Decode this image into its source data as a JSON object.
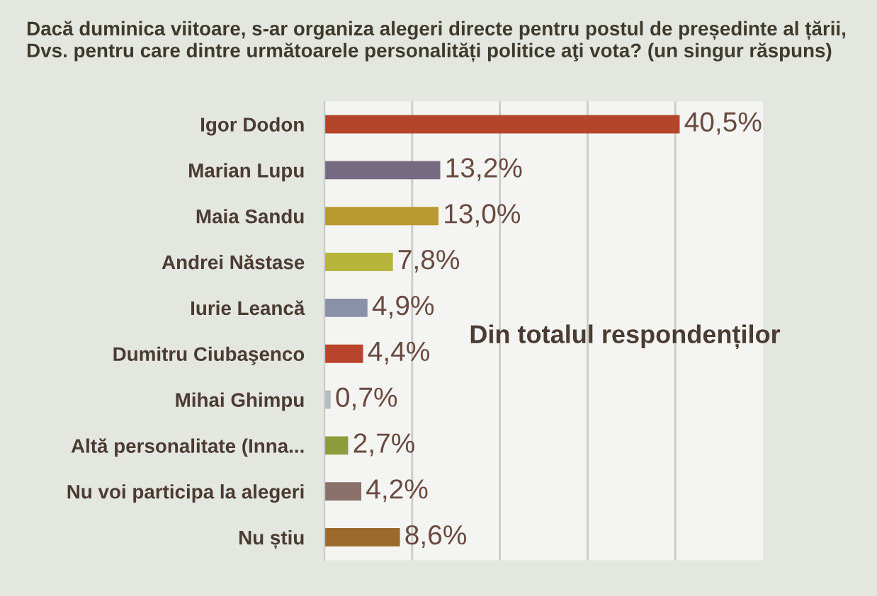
{
  "chart_data": {
    "type": "bar",
    "orientation": "horizontal",
    "title": "Dacă duminica viitoare, s-ar organiza alegeri directe pentru postul de președinte al țării, Dvs. pentru care dintre următoarele personalități politice aţi vota? (un singur răspuns)",
    "categories": [
      "Igor Dodon",
      "Marian Lupu",
      "Maia Sandu",
      "Andrei Năstase",
      "Iurie Leancă",
      "Dumitru Ciubaşenco",
      "Mihai Ghimpu",
      "Altă personalitate (Inna...",
      "Nu voi participa la alegeri",
      "Nu știu"
    ],
    "values": [
      40.5,
      13.2,
      13.0,
      7.8,
      4.9,
      4.4,
      0.7,
      2.7,
      4.2,
      8.6
    ],
    "colors": [
      "#b5452a",
      "#766a82",
      "#b89a30",
      "#b6b43a",
      "#8a90a8",
      "#b8442c",
      "#b4bcc4",
      "#8c9c3c",
      "#8a716a",
      "#9c6a2c"
    ],
    "value_labels": [
      "40,5%",
      "13,2%",
      "13,0%",
      "7,8%",
      "4,9%",
      "4,4%",
      "0,7%",
      "2,7%",
      "4,2%",
      "8,6%"
    ],
    "annotations": [
      "Din totalul respondenților"
    ],
    "xlim": [
      0,
      50
    ],
    "xticks": [
      {
        "value": 10,
        "label": null
      },
      {
        "value": 20,
        "label": null
      },
      {
        "value": 30,
        "label": null
      },
      {
        "value": 40,
        "label": null
      }
    ],
    "grid": "x",
    "tick_labels": "y"
  }
}
